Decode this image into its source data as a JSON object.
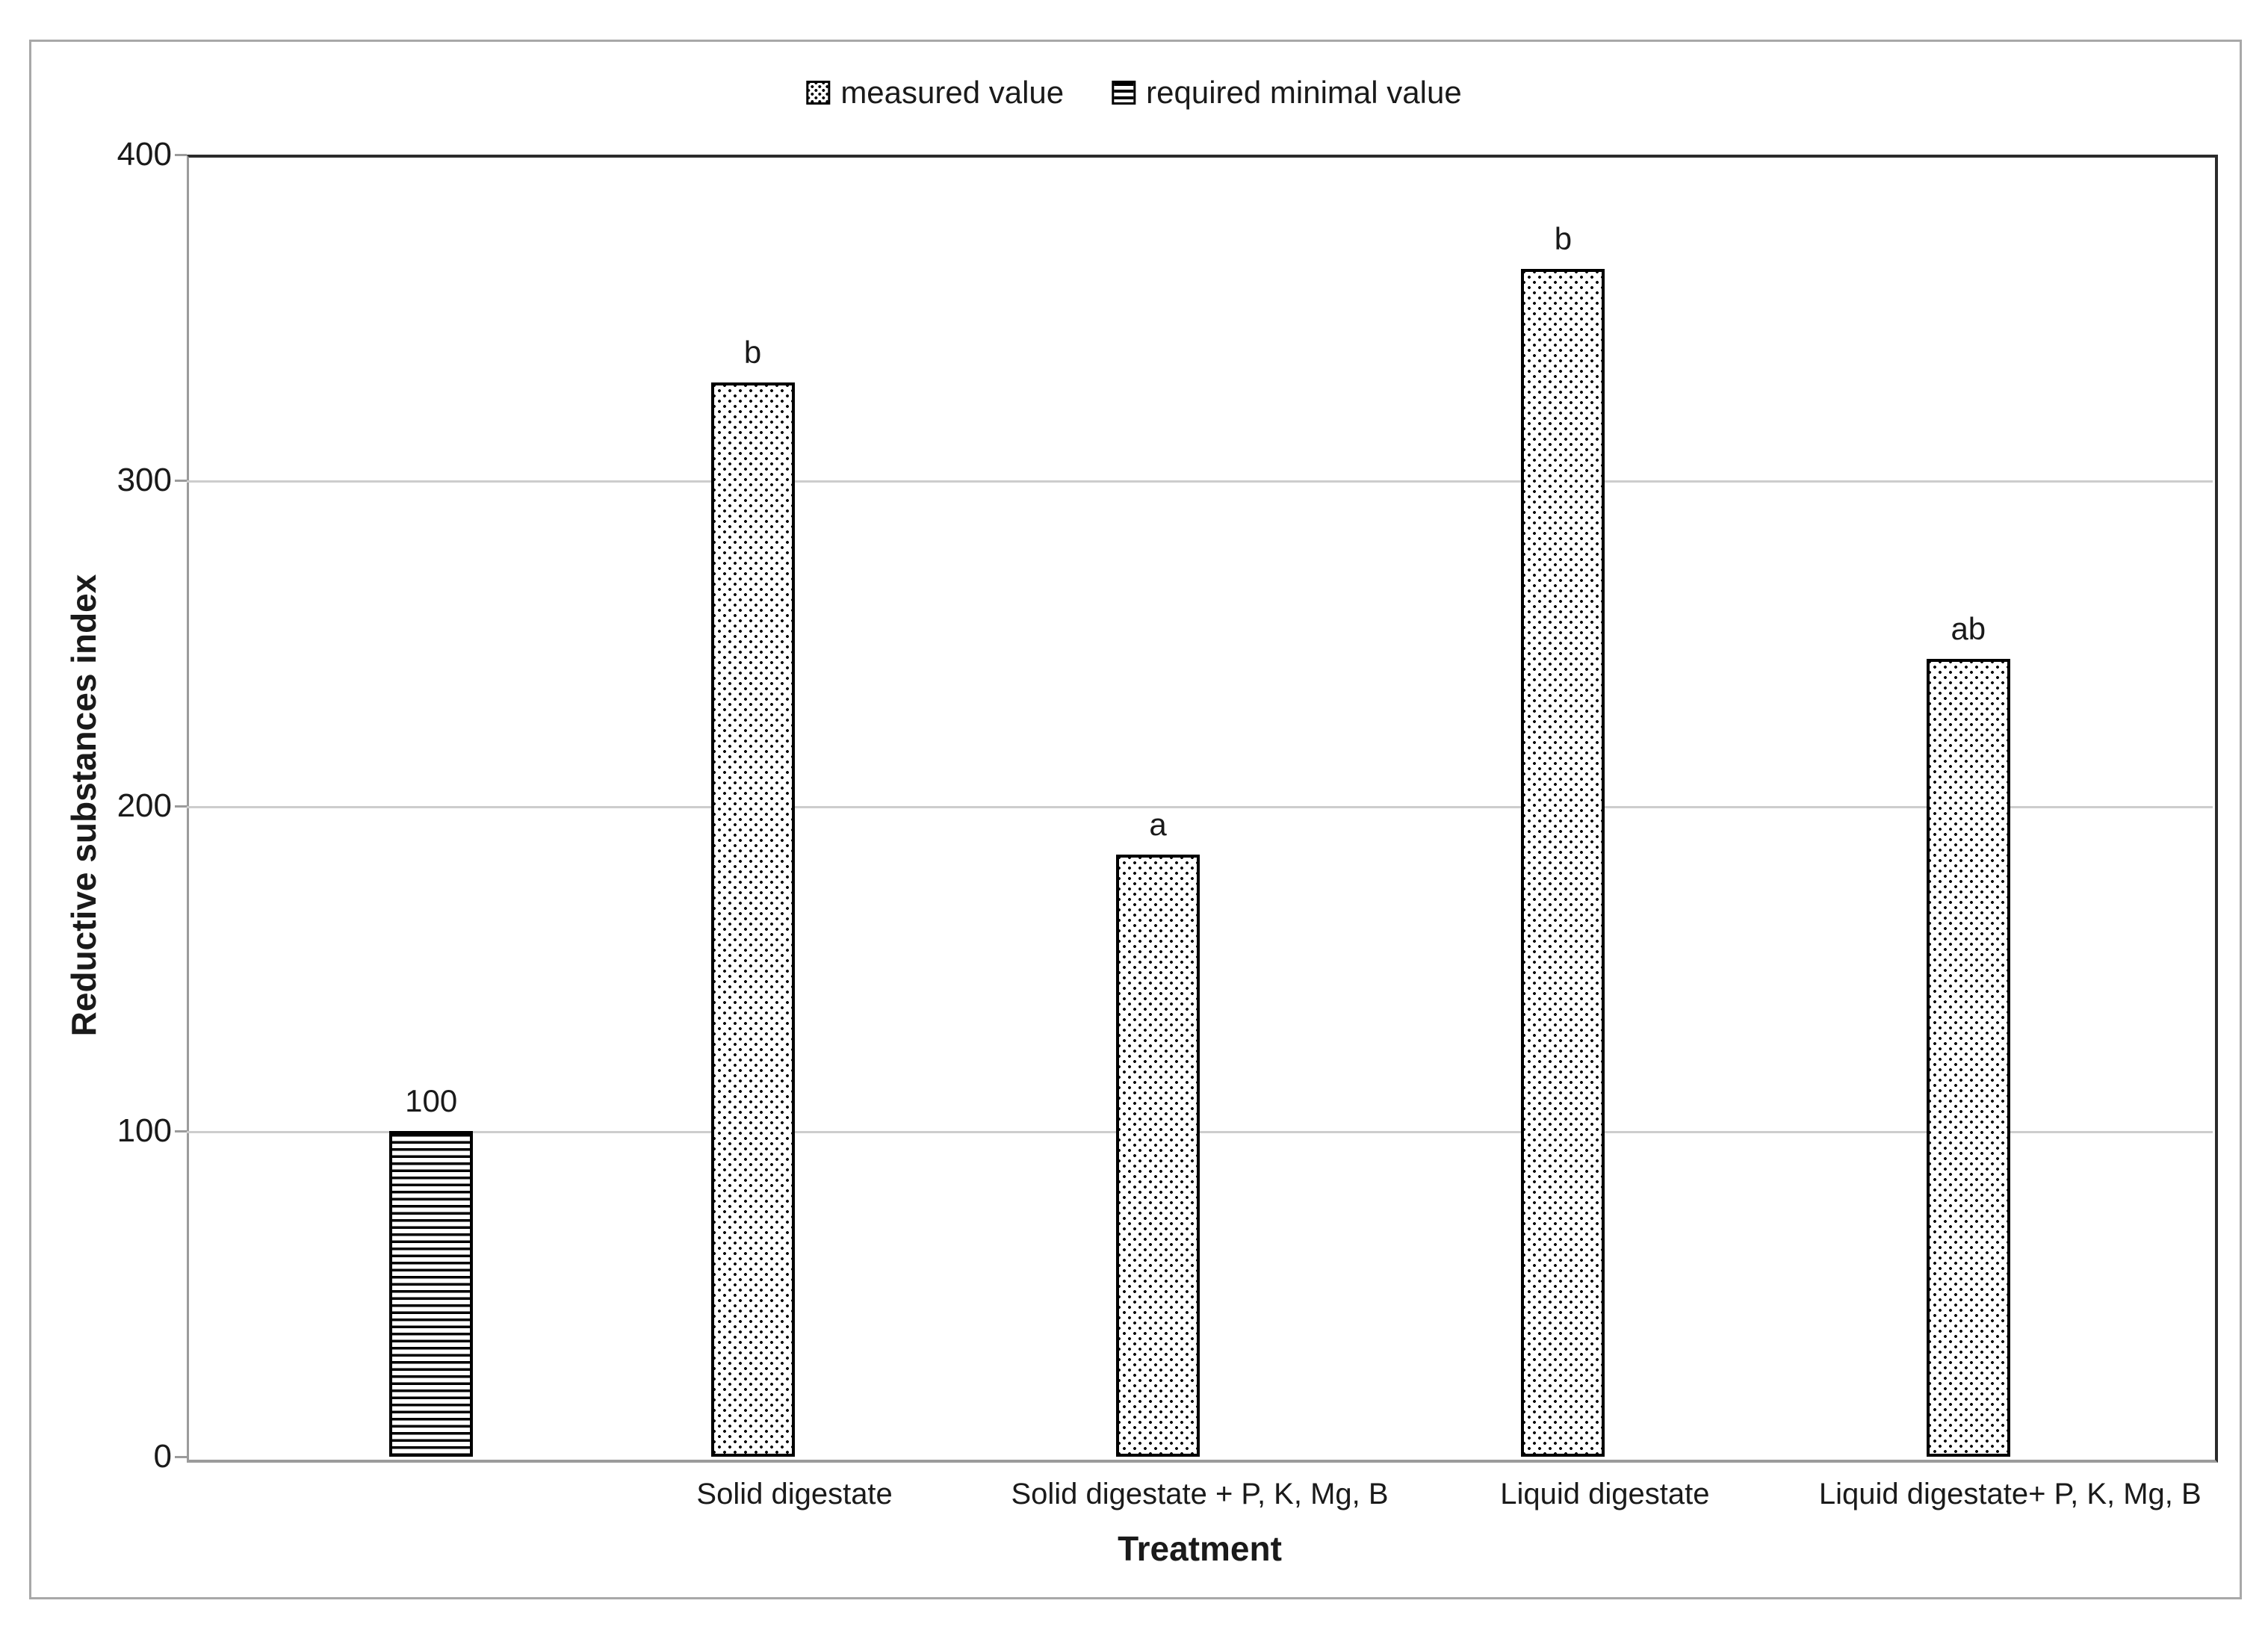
{
  "chart_data": {
    "type": "bar",
    "title": "",
    "xlabel": "Treatment",
    "ylabel": "Reductive substances index",
    "ylim": [
      0,
      400
    ],
    "yticks": [
      0,
      100,
      200,
      300,
      400
    ],
    "grid": true,
    "legend_position": "top-center",
    "categories": [
      "",
      "Solid digestate",
      "Solid digestate  + P, K, Mg, B",
      "Liquid digestate",
      "Liquid digestate+ P, K, Mg, B"
    ],
    "series": [
      {
        "name": "measured value",
        "pattern": "dots",
        "values": [
          null,
          330,
          185,
          365,
          245
        ],
        "point_labels": [
          "",
          "b",
          "a",
          "b",
          "ab"
        ]
      },
      {
        "name": "required minimal value",
        "pattern": "hlines",
        "values": [
          100,
          null,
          null,
          null,
          null
        ],
        "point_labels": [
          "100",
          "",
          "",
          "",
          ""
        ]
      }
    ]
  },
  "colors": {
    "text": "#1a1a1a",
    "gridline": "#cdcdcd",
    "axis_line": "#9b9b9b",
    "plot_border": "#2b2b2b",
    "figure_border": "#a8a8a8",
    "pattern_foreground": "#000000",
    "pattern_background": "#ffffff"
  }
}
